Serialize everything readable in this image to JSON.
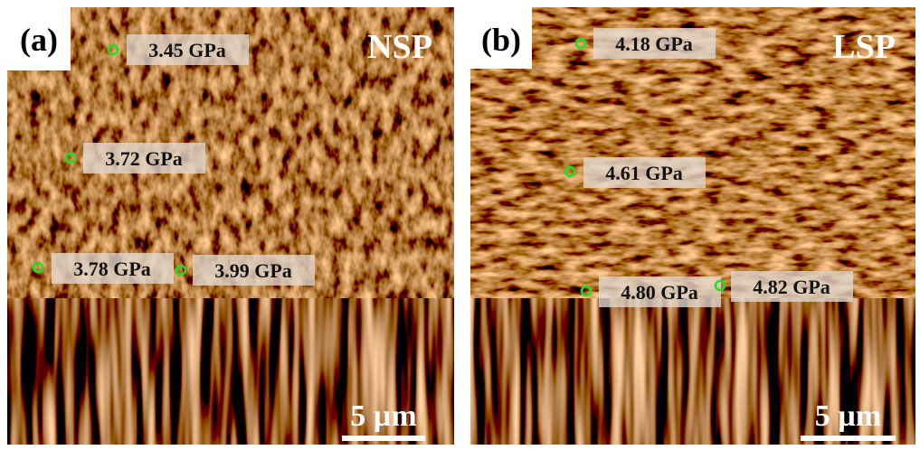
{
  "panels": [
    {
      "label": "(a)",
      "title": "NSP",
      "scale_bar": "5 µm",
      "points": [
        {
          "label": "3.45 GPa"
        },
        {
          "label": "3.72 GPa"
        },
        {
          "label": "3.78 GPa"
        },
        {
          "label": "3.99 GPa"
        }
      ]
    },
    {
      "label": "(b)",
      "title": "LSP",
      "scale_bar": "5 µm",
      "points": [
        {
          "label": "4.18 GPa"
        },
        {
          "label": "4.61 GPa"
        },
        {
          "label": "4.80 GPa"
        },
        {
          "label": "4.82 GPa"
        }
      ]
    }
  ]
}
